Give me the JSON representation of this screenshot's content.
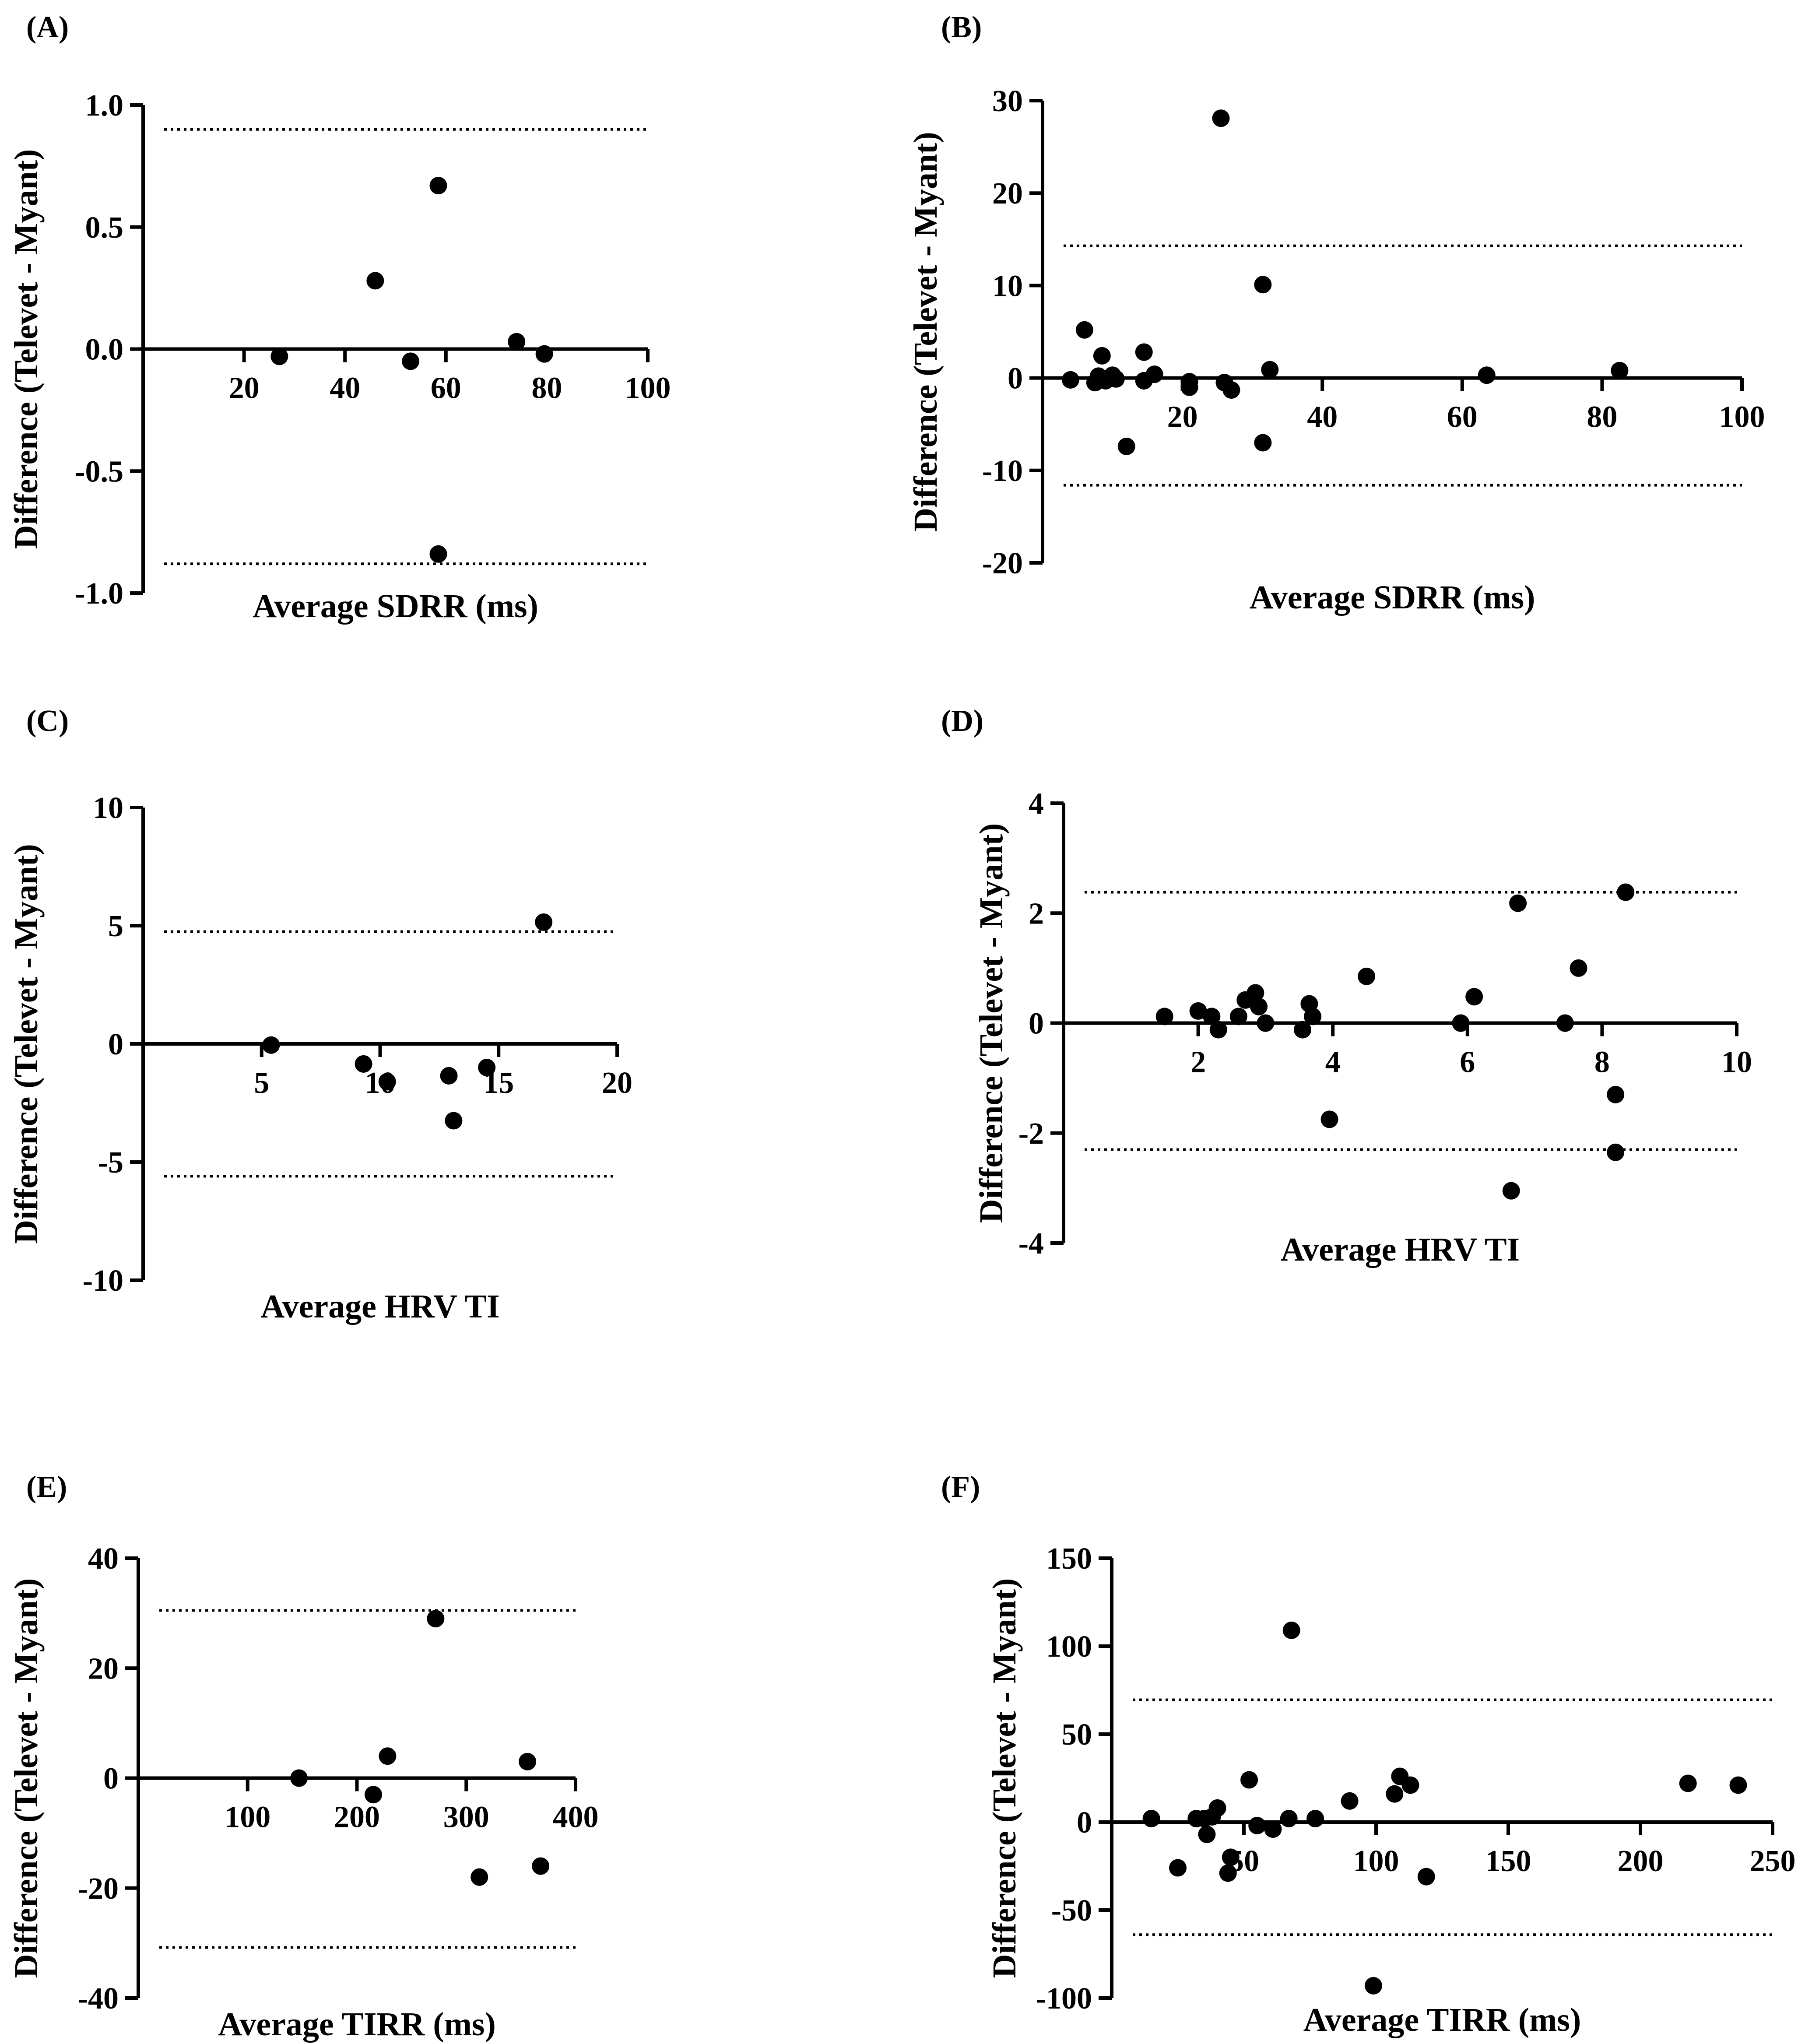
{
  "figure": {
    "panels": [
      {
        "label": "(A)"
      },
      {
        "label": "(B)"
      },
      {
        "label": "(C)"
      },
      {
        "label": "(D)"
      },
      {
        "label": "(E)"
      },
      {
        "label": "(F)"
      }
    ]
  },
  "chart_data": [
    {
      "panel": "(A)",
      "type": "scatter",
      "xlabel": "Average SDRR (ms)",
      "ylabel": "Difference (Televet - Myant)",
      "xlim": [
        0,
        100
      ],
      "ylim": [
        -1.0,
        1.0
      ],
      "xticks": [
        "20",
        "40",
        "60",
        "80",
        "100"
      ],
      "yticks": [
        "1.0",
        "0.5",
        "0.0",
        "-0.5",
        "-1.0"
      ],
      "limits_of_agreement": [
        0.9,
        -0.88
      ],
      "points": [
        [
          27,
          -0.03
        ],
        [
          46,
          0.28
        ],
        [
          53,
          -0.05
        ],
        [
          58.5,
          0.67
        ],
        [
          58.5,
          -0.84
        ],
        [
          74,
          0.03
        ],
        [
          79.5,
          -0.02
        ]
      ]
    },
    {
      "panel": "(B)",
      "type": "scatter",
      "xlabel": "Average SDRR (ms)",
      "ylabel": "Difference (Televet - Myant)",
      "xlim": [
        0,
        100
      ],
      "ylim": [
        -20,
        30
      ],
      "xticks": [
        "20",
        "40",
        "60",
        "80",
        "100"
      ],
      "yticks": [
        "30",
        "20",
        "10",
        "0",
        "-10",
        "-20"
      ],
      "limits_of_agreement": [
        14.3,
        -11.6
      ],
      "points": [
        [
          4,
          -0.2
        ],
        [
          6,
          5.2
        ],
        [
          7.5,
          -0.5
        ],
        [
          8,
          0.2
        ],
        [
          8.5,
          2.4
        ],
        [
          9,
          -0.3
        ],
        [
          10,
          0.3
        ],
        [
          10.5,
          -0.1
        ],
        [
          12,
          -7.4
        ],
        [
          14.5,
          2.8
        ],
        [
          14.5,
          -0.3
        ],
        [
          16,
          0.4
        ],
        [
          21,
          -0.4
        ],
        [
          21,
          -1
        ],
        [
          25.5,
          28.1
        ],
        [
          26,
          -0.5
        ],
        [
          27,
          -1.3
        ],
        [
          31.5,
          10.1
        ],
        [
          31.5,
          -7
        ],
        [
          32.5,
          0.9
        ],
        [
          63.5,
          0.3
        ],
        [
          82.5,
          0.8
        ]
      ]
    },
    {
      "panel": "(C)",
      "type": "scatter",
      "xlabel": "Average HRV TI",
      "ylabel": "Difference (Televet - Myant)",
      "xlim": [
        0,
        20
      ],
      "ylim": [
        -10,
        10
      ],
      "xticks": [
        "5",
        "10",
        "15",
        "20"
      ],
      "yticks": [
        "10",
        "5",
        "0",
        "-5",
        "-10"
      ],
      "limits_of_agreement": [
        4.75,
        -5.6
      ],
      "points": [
        [
          5.4,
          -0.05
        ],
        [
          9.3,
          -0.85
        ],
        [
          10.3,
          -1.6
        ],
        [
          12.9,
          -1.35
        ],
        [
          13.1,
          -3.25
        ],
        [
          14.5,
          -1.0
        ],
        [
          16.9,
          5.15
        ]
      ]
    },
    {
      "panel": "(D)",
      "type": "scatter",
      "xlabel": "Average HRV TI",
      "ylabel": "Difference (Televet - Myant)",
      "xlim": [
        0,
        10
      ],
      "ylim": [
        -4,
        4
      ],
      "xticks": [
        "2",
        "4",
        "6",
        "8",
        "10"
      ],
      "yticks": [
        "4",
        "2",
        "0",
        "-2",
        "-4"
      ],
      "limits_of_agreement": [
        2.38,
        -2.3
      ],
      "points": [
        [
          1.5,
          0.12
        ],
        [
          2.0,
          0.22
        ],
        [
          2.2,
          0.12
        ],
        [
          2.3,
          -0.12
        ],
        [
          2.6,
          0.12
        ],
        [
          2.7,
          0.42
        ],
        [
          2.85,
          0.55
        ],
        [
          2.9,
          0.3
        ],
        [
          3.0,
          0.0
        ],
        [
          3.55,
          -0.12
        ],
        [
          3.65,
          0.35
        ],
        [
          3.7,
          0.12
        ],
        [
          3.95,
          -1.75
        ],
        [
          4.5,
          0.85
        ],
        [
          5.9,
          0.0
        ],
        [
          6.1,
          0.48
        ],
        [
          6.65,
          -3.05
        ],
        [
          6.75,
          2.18
        ],
        [
          7.45,
          0.0
        ],
        [
          7.65,
          1.0
        ],
        [
          8.2,
          -1.3
        ],
        [
          8.2,
          -2.35
        ],
        [
          8.35,
          2.38
        ]
      ]
    },
    {
      "panel": "(E)",
      "type": "scatter",
      "xlabel": "Average TIRR (ms)",
      "ylabel": "Difference (Televet - Myant)",
      "xlim": [
        0,
        400
      ],
      "ylim": [
        -40,
        40
      ],
      "xticks": [
        "100",
        "200",
        "300",
        "400"
      ],
      "yticks": [
        "40",
        "20",
        "0",
        "-20",
        "-40"
      ],
      "limits_of_agreement": [
        30.5,
        -30.8
      ],
      "points": [
        [
          147,
          0
        ],
        [
          215,
          -3
        ],
        [
          228,
          4
        ],
        [
          272,
          29
        ],
        [
          312,
          -18
        ],
        [
          356,
          3
        ],
        [
          368,
          -16
        ]
      ]
    },
    {
      "panel": "(F)",
      "type": "scatter",
      "xlabel": "Average TIRR (ms)",
      "ylabel": "Difference (Televet - Myant)",
      "xlim": [
        0,
        250
      ],
      "ylim": [
        -100,
        150
      ],
      "xticks": [
        "50",
        "100",
        "150",
        "200",
        "250"
      ],
      "yticks": [
        "150",
        "100",
        "50",
        "0",
        "-50",
        "-100"
      ],
      "limits_of_agreement": [
        69.5,
        -64
      ],
      "points": [
        [
          15,
          2
        ],
        [
          25,
          -26
        ],
        [
          32,
          2
        ],
        [
          35,
          2
        ],
        [
          36,
          -7
        ],
        [
          38,
          3
        ],
        [
          40,
          8
        ],
        [
          44,
          -29
        ],
        [
          45,
          -20
        ],
        [
          52,
          24
        ],
        [
          55,
          -2
        ],
        [
          61,
          -4
        ],
        [
          67,
          2
        ],
        [
          68,
          109
        ],
        [
          77,
          2
        ],
        [
          90,
          12
        ],
        [
          99,
          -93
        ],
        [
          107,
          16
        ],
        [
          109,
          26
        ],
        [
          113,
          21
        ],
        [
          119,
          -31
        ],
        [
          218,
          22
        ],
        [
          237,
          21
        ]
      ]
    }
  ]
}
